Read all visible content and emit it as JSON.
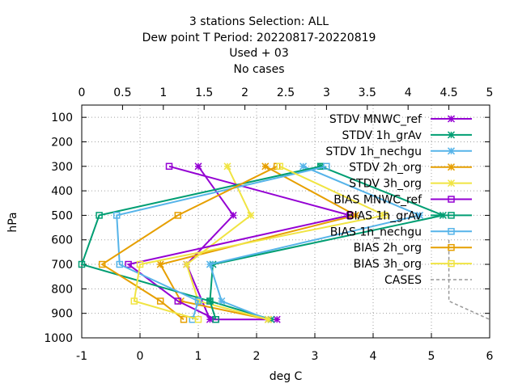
{
  "chart_data": {
    "type": "line",
    "title_lines": [
      "3 stations Selection: ALL",
      "Dew point T  Period: 20220817-20220819",
      "Used    + 03",
      "No cases"
    ],
    "xlabel": "deg C",
    "ylabel": "hPa",
    "xlim": [
      -1,
      6
    ],
    "x2lim": [
      0,
      5
    ],
    "ylim": [
      1000,
      50
    ],
    "x_ticks": [
      "-1",
      "0",
      "1",
      "2",
      "3",
      "4",
      "5",
      "6"
    ],
    "x2_ticks": [
      "0",
      "0.5",
      "1",
      "1.5",
      "2",
      "2.5",
      "3",
      "3.5",
      "4",
      "4.5",
      "5"
    ],
    "y_ticks": [
      "100",
      "200",
      "300",
      "400",
      "500",
      "600",
      "700",
      "800",
      "900",
      "1000"
    ],
    "grid": true,
    "legend_position": "top-right",
    "series": [
      {
        "name": "STDV MNWC_ref",
        "color": "#9400d3",
        "marker": "star",
        "points": [
          [
            1.0,
            300
          ],
          [
            1.6,
            500
          ],
          [
            0.8,
            700
          ],
          [
            1.2,
            925
          ],
          [
            2.35,
            925
          ]
        ]
      },
      {
        "name": "STDV 1h_grAv",
        "color": "#009e73",
        "marker": "star",
        "points": [
          [
            3.1,
            300
          ],
          [
            5.2,
            500
          ],
          [
            1.25,
            700
          ],
          [
            1.2,
            850
          ],
          [
            2.25,
            925
          ]
        ]
      },
      {
        "name": "STDV 1h_nechgu",
        "color": "#56b4e9",
        "marker": "star",
        "points": [
          [
            2.8,
            300
          ],
          [
            4.8,
            500
          ],
          [
            1.2,
            700
          ],
          [
            1.4,
            850
          ],
          [
            2.2,
            925
          ]
        ]
      },
      {
        "name": "STDV 2h_org",
        "color": "#e69f00",
        "marker": "star",
        "points": [
          [
            2.15,
            300
          ],
          [
            3.7,
            500
          ],
          [
            0.35,
            700
          ],
          [
            0.7,
            850
          ],
          [
            2.2,
            925
          ]
        ]
      },
      {
        "name": "STDV 3h_org",
        "color": "#f0e442",
        "marker": "star",
        "points": [
          [
            1.5,
            300
          ],
          [
            1.9,
            500
          ],
          [
            0.8,
            700
          ],
          [
            1.0,
            850
          ],
          [
            2.2,
            925
          ]
        ]
      },
      {
        "name": "BIAS MNWC_ref",
        "color": "#9400d3",
        "marker": "square",
        "points": [
          [
            0.5,
            300
          ],
          [
            3.6,
            500
          ],
          [
            -0.2,
            700
          ],
          [
            0.65,
            850
          ],
          [
            1.3,
            925
          ]
        ]
      },
      {
        "name": "BIAS 1h_grAv",
        "color": "#009e73",
        "marker": "square",
        "points": [
          [
            3.1,
            300
          ],
          [
            -0.7,
            500
          ],
          [
            -1.0,
            700
          ],
          [
            1.2,
            850
          ],
          [
            1.3,
            925
          ]
        ]
      },
      {
        "name": "BIAS 1h_nechgu",
        "color": "#56b4e9",
        "marker": "square",
        "points": [
          [
            3.2,
            300
          ],
          [
            -0.4,
            500
          ],
          [
            -0.35,
            700
          ],
          [
            1.0,
            850
          ],
          [
            0.9,
            925
          ]
        ]
      },
      {
        "name": "BIAS 2h_org",
        "color": "#e69f00",
        "marker": "square",
        "points": [
          [
            2.35,
            300
          ],
          [
            0.65,
            500
          ],
          [
            -0.65,
            700
          ],
          [
            0.35,
            850
          ],
          [
            0.75,
            925
          ]
        ]
      },
      {
        "name": "BIAS 3h_org",
        "color": "#f0e442",
        "marker": "square",
        "points": [
          [
            2.4,
            300
          ],
          [
            4.2,
            500
          ],
          [
            0.0,
            700
          ],
          [
            -0.1,
            850
          ],
          [
            1.0,
            925
          ]
        ]
      },
      {
        "name": "CASES",
        "color": "#999999",
        "marker": "none",
        "dashed": true,
        "axis": "x2",
        "points": [
          [
            4.5,
            600
          ],
          [
            4.5,
            850
          ],
          [
            5.0,
            925
          ]
        ]
      }
    ]
  }
}
